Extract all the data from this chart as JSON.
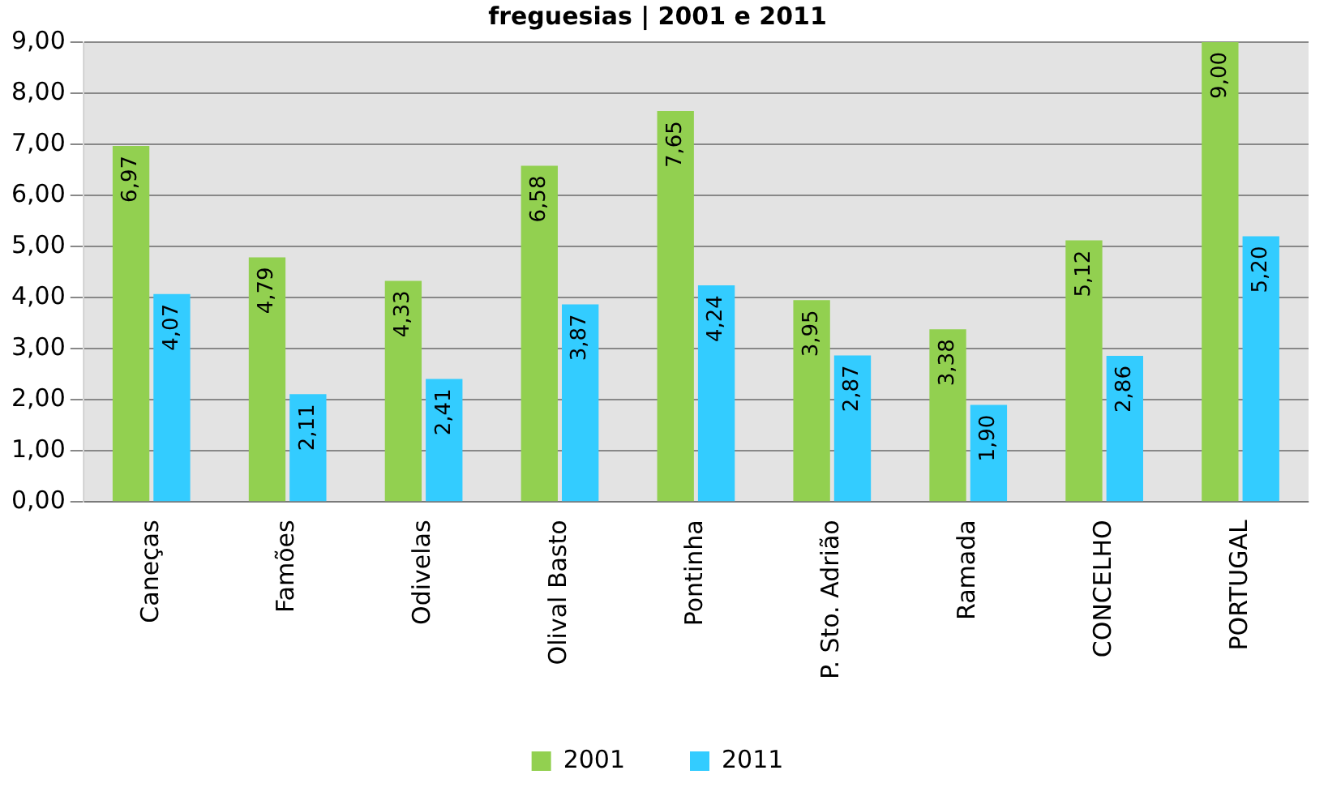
{
  "chart_data": {
    "type": "bar",
    "title": "freguesias | 2001 e 2011",
    "categories": [
      "Caneças",
      "Famões",
      "Odivelas",
      "Olival Basto",
      "Pontinha",
      "P. Sto. Adrião",
      "Ramada",
      "CONCELHO",
      "PORTUGAL"
    ],
    "series": [
      {
        "name": "2001",
        "color": "#92d050",
        "values": [
          6.97,
          4.79,
          4.33,
          6.58,
          7.65,
          3.95,
          3.38,
          5.12,
          9.0
        ],
        "value_labels": [
          "6,97",
          "4,79",
          "4,33",
          "6,58",
          "7,65",
          "3,95",
          "3,38",
          "5,12",
          "9,00"
        ]
      },
      {
        "name": "2011",
        "color": "#33ccff",
        "values": [
          4.07,
          2.11,
          2.41,
          3.87,
          4.24,
          2.87,
          1.9,
          2.86,
          5.2
        ],
        "value_labels": [
          "4,07",
          "2,11",
          "2,41",
          "3,87",
          "4,24",
          "2,87",
          "1,90",
          "2,86",
          "5,20"
        ]
      }
    ],
    "ylim": [
      0,
      9
    ],
    "yticks": [
      {
        "value": 0,
        "label": "0,00"
      },
      {
        "value": 1,
        "label": "1,00"
      },
      {
        "value": 2,
        "label": "2,00"
      },
      {
        "value": 3,
        "label": "3,00"
      },
      {
        "value": 4,
        "label": "4,00"
      },
      {
        "value": 5,
        "label": "5,00"
      },
      {
        "value": 6,
        "label": "6,00"
      },
      {
        "value": 7,
        "label": "7,00"
      },
      {
        "value": 8,
        "label": "8,00"
      },
      {
        "value": 9,
        "label": "9,00"
      }
    ],
    "grid": "y",
    "legend": "bottom"
  }
}
